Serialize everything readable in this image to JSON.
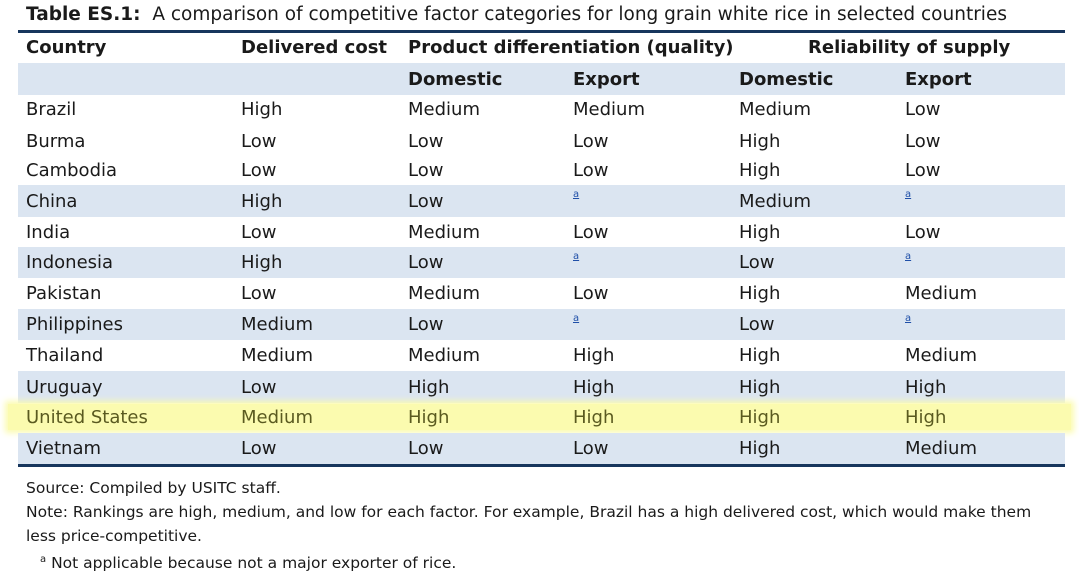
{
  "title": {
    "label": "Table ES.1:",
    "text": "A comparison of competitive factor categories for long grain white rice in selected countries"
  },
  "header": {
    "country": "Country",
    "delivered_cost": "Delivered cost",
    "product_diff": "Product differentiation (quality)",
    "reliability": "Reliability of supply"
  },
  "subheader": {
    "domestic": "Domestic",
    "export": "Export",
    "domestic2": "Domestic",
    "export2": "Export"
  },
  "footnote_mark": "a",
  "rows": [
    {
      "country": "Brazil",
      "cost": "High",
      "pd_dom": "Medium",
      "pd_exp": "Medium",
      "rs_dom": "Medium",
      "rs_exp": "Low"
    },
    {
      "country": "Burma",
      "cost": "Low",
      "pd_dom": "Low",
      "pd_exp": "Low",
      "rs_dom": "High",
      "rs_exp": "Low"
    },
    {
      "country": "Cambodia",
      "cost": "Low",
      "pd_dom": "Low",
      "pd_exp": "Low",
      "rs_dom": "High",
      "rs_exp": "Low"
    },
    {
      "country": "China",
      "cost": "High",
      "pd_dom": "Low",
      "pd_exp": "a",
      "rs_dom": "Medium",
      "rs_exp": "a"
    },
    {
      "country": "India",
      "cost": "Low",
      "pd_dom": "Medium",
      "pd_exp": "Low",
      "rs_dom": "High",
      "rs_exp": "Low"
    },
    {
      "country": "Indonesia",
      "cost": "High",
      "pd_dom": "Low",
      "pd_exp": "a",
      "rs_dom": "Low",
      "rs_exp": "a"
    },
    {
      "country": "Pakistan",
      "cost": "Low",
      "pd_dom": "Medium",
      "pd_exp": "Low",
      "rs_dom": "High",
      "rs_exp": "Medium"
    },
    {
      "country": "Philippines",
      "cost": "Medium",
      "pd_dom": "Low",
      "pd_exp": "a",
      "rs_dom": "Low",
      "rs_exp": "a"
    },
    {
      "country": "Thailand",
      "cost": "Medium",
      "pd_dom": "Medium",
      "pd_exp": "High",
      "rs_dom": "High",
      "rs_exp": "Medium"
    },
    {
      "country": "Uruguay",
      "cost": "Low",
      "pd_dom": "High",
      "pd_exp": "High",
      "rs_dom": "High",
      "rs_exp": "High"
    },
    {
      "country": "United States",
      "cost": "Medium",
      "pd_dom": "High",
      "pd_exp": "High",
      "rs_dom": "High",
      "rs_exp": "High"
    },
    {
      "country": "Vietnam",
      "cost": "Low",
      "pd_dom": "Low",
      "pd_exp": "Low",
      "rs_dom": "High",
      "rs_exp": "Medium"
    }
  ],
  "notes": {
    "source": "Source: Compiled by USITC staff.",
    "note": "Note: Rankings are high, medium, and low for each factor. For example, Brazil has a high delivered cost, which would make them less price-competitive.",
    "footnote_mark": "a",
    "footnote": "Not applicable because not a major exporter of rice."
  },
  "colors": {
    "rule": "#17365d",
    "shade": "#dbe5f1",
    "highlight": "#fbfbaf",
    "link": "#1f4fa8"
  }
}
